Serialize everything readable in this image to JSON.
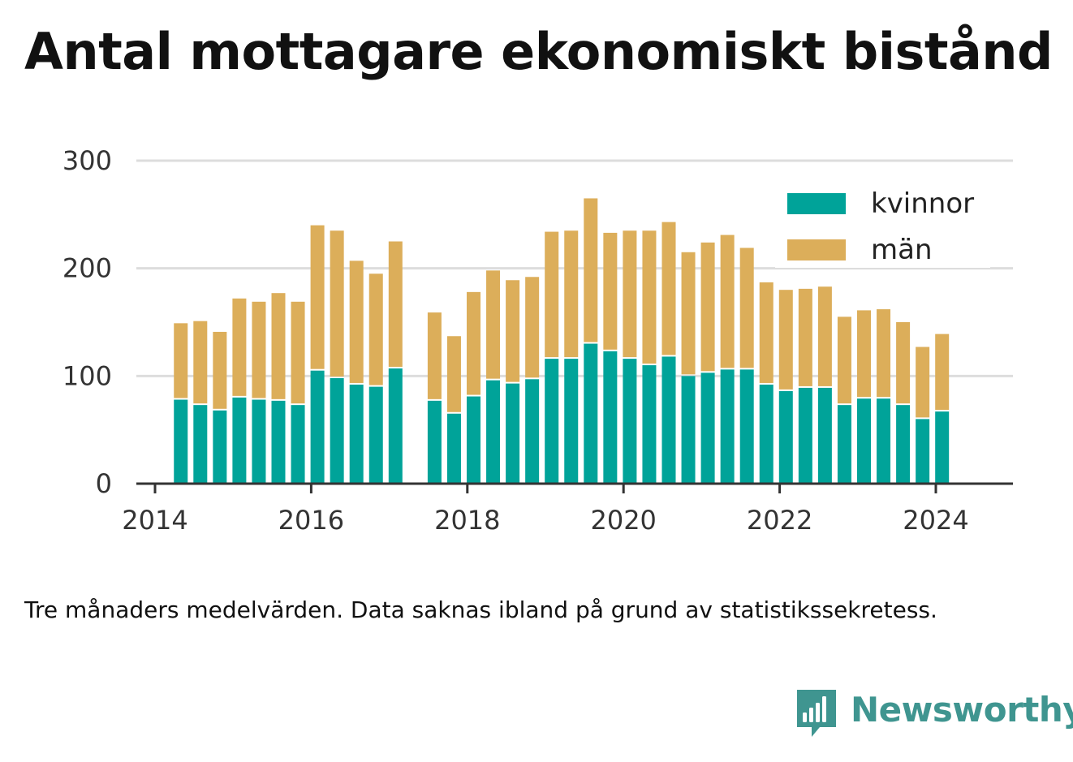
{
  "chart_data": {
    "type": "bar",
    "stacked": true,
    "title": "Antal mottagare ekonomiskt bistånd",
    "note": "Tre månaders medelvärden. Data saknas ibland på grund av statistikssekretess.",
    "xlabel": "",
    "ylabel": "",
    "ylim": [
      0,
      300
    ],
    "xlim": [
      2014.0,
      2024.7
    ],
    "y_ticks": [
      0,
      100,
      200,
      300
    ],
    "x_ticks": [
      2014,
      2016,
      2018,
      2020,
      2022,
      2024
    ],
    "grid": true,
    "legend_position": "top-right",
    "x": [
      2014.33,
      2014.58,
      2014.83,
      2015.08,
      2015.33,
      2015.58,
      2015.83,
      2016.08,
      2016.33,
      2016.58,
      2016.83,
      2017.08,
      2017.58,
      2017.83,
      2018.08,
      2018.33,
      2018.58,
      2018.83,
      2019.08,
      2019.33,
      2019.58,
      2019.83,
      2020.08,
      2020.33,
      2020.58,
      2020.83,
      2021.08,
      2021.33,
      2021.58,
      2021.83,
      2022.08,
      2022.33,
      2022.58,
      2022.83,
      2023.08,
      2023.33,
      2023.58,
      2023.83,
      2024.08
    ],
    "series": [
      {
        "name": "kvinnor",
        "color": "#00a399",
        "values": [
          78,
          73,
          68,
          80,
          78,
          77,
          73,
          105,
          98,
          92,
          90,
          107,
          77,
          65,
          81,
          96,
          93,
          97,
          116,
          116,
          130,
          123,
          116,
          110,
          118,
          100,
          103,
          106,
          106,
          92,
          86,
          89,
          89,
          73,
          79,
          79,
          73,
          60,
          67
        ]
      },
      {
        "name": "män",
        "color": "#dcae5a",
        "values": [
          71,
          78,
          73,
          92,
          91,
          100,
          96,
          135,
          137,
          115,
          105,
          118,
          82,
          72,
          97,
          102,
          96,
          95,
          118,
          119,
          135,
          110,
          119,
          125,
          125,
          115,
          121,
          125,
          113,
          95,
          94,
          92,
          94,
          82,
          82,
          83,
          77,
          67,
          72
        ]
      }
    ]
  },
  "brand": {
    "name": "Newsworthy",
    "color": "#3f9590"
  }
}
